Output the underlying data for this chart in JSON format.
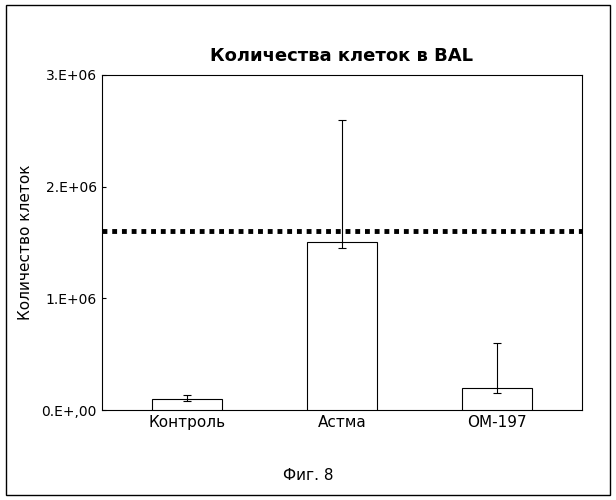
{
  "title": "Количества клеток в BAL",
  "ylabel": "Количество клеток",
  "xlabel_caption": "Фиг. 8",
  "categories": [
    "Контроль",
    "Астма",
    "OM-197"
  ],
  "bar_values": [
    100000,
    1500000,
    200000
  ],
  "bar_errors_upper": [
    30000,
    1100000,
    400000
  ],
  "bar_errors_lower": [
    20000,
    50000,
    50000
  ],
  "bar_colors": [
    "white",
    "white",
    "white"
  ],
  "bar_hatches": [
    null,
    ",,,",
    null
  ],
  "dotted_line_y": 1600000,
  "ylim": [
    0,
    3000000
  ],
  "yticks": [
    0,
    1000000,
    2000000,
    3000000
  ],
  "ytick_labels": [
    "0.E+,00",
    "1.E+06",
    "2.E+06",
    "3.E+06"
  ],
  "background_color": "#ffffff",
  "plot_bg_color": "#ffffff",
  "title_fontsize": 13,
  "axis_fontsize": 11,
  "tick_fontsize": 10,
  "caption_fontsize": 11,
  "bar_width": 0.45,
  "xlim": [
    -0.55,
    2.55
  ]
}
